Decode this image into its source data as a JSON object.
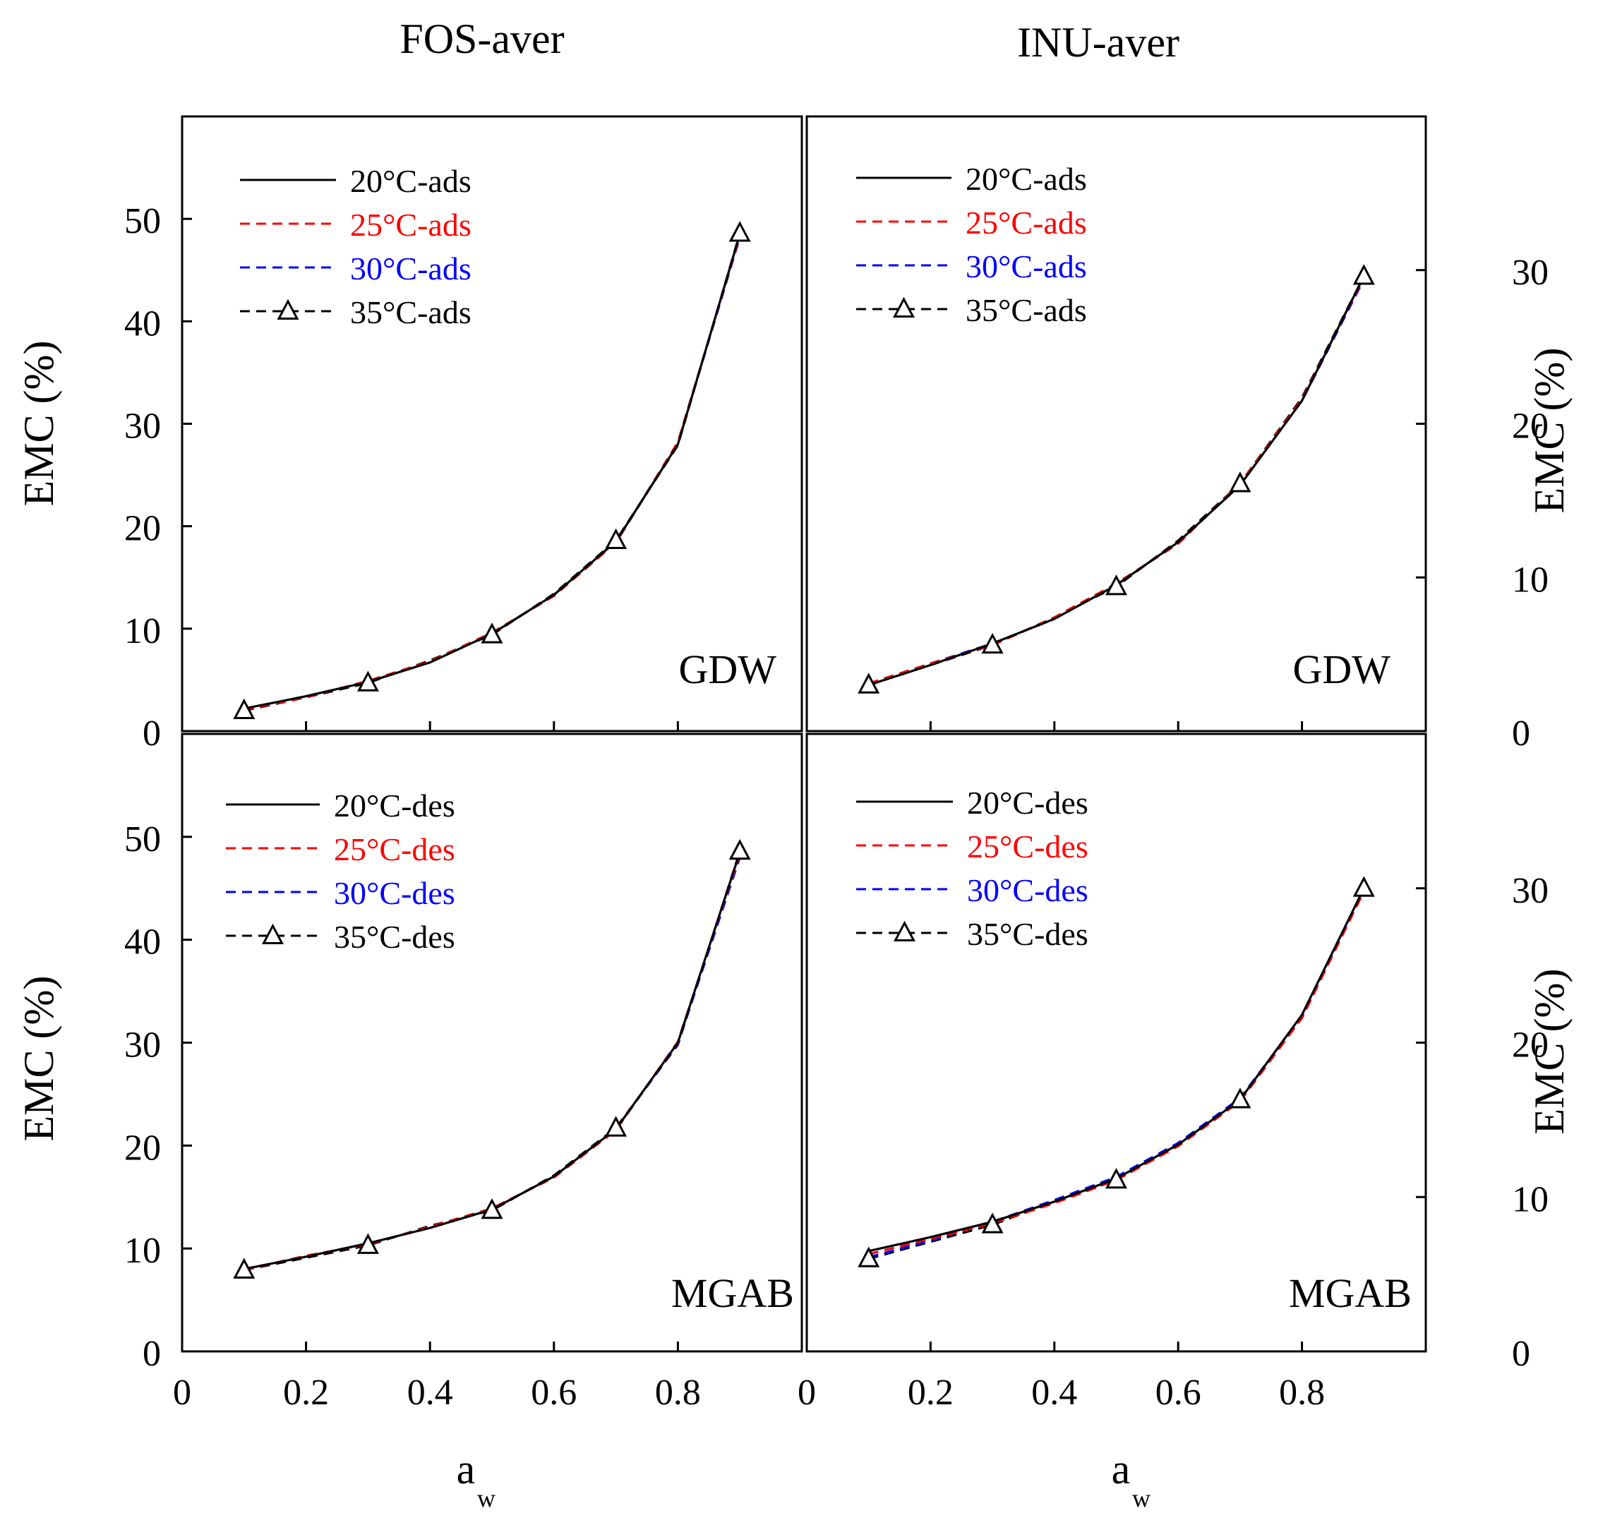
{
  "figure": {
    "col_titles": [
      "FOS-aver",
      "INU-aver"
    ],
    "xlabel_main": "a",
    "xlabel_sub": "w",
    "ylabel": "EMC (%)"
  },
  "colors": {
    "black": "#000000",
    "red": "#ff0000",
    "blue": "#0000ff"
  },
  "chart_data": [
    {
      "id": "fos-ads",
      "type": "line",
      "column_title": "FOS-aver",
      "panel_label": "GDW",
      "xlim": [
        0,
        1
      ],
      "ylim": [
        0,
        60
      ],
      "yticks": [
        0,
        10,
        20,
        30,
        40,
        50
      ],
      "xticks": [
        0,
        0.2,
        0.4,
        0.6,
        0.8
      ],
      "xtick_labels": [
        "0",
        "0.2",
        "0.4",
        "0.6",
        "0.8"
      ],
      "ylabel": "EMC (%)",
      "y_axis_side": "left",
      "legend_position": "top-left",
      "series": [
        {
          "name": "20°C-ads",
          "color": "#000000",
          "dash": "solid",
          "marker": "none",
          "x": [
            0.1,
            0.2,
            0.3,
            0.4,
            0.5,
            0.6,
            0.7,
            0.8,
            0.9
          ],
          "y": [
            2.2,
            3.4,
            4.8,
            6.7,
            9.5,
            13.3,
            18.5,
            28.0,
            48.5
          ]
        },
        {
          "name": "25°C-ads",
          "color": "#ff0000",
          "dash": "dashed",
          "marker": "none",
          "x": [
            0.1,
            0.2,
            0.3,
            0.4,
            0.5,
            0.6,
            0.7,
            0.8,
            0.9
          ],
          "y": [
            2.1,
            3.3,
            4.9,
            6.8,
            9.6,
            13.2,
            18.4,
            28.2,
            48.3
          ]
        },
        {
          "name": "30°C-ads",
          "color": "#0000ff",
          "dash": "dashed",
          "marker": "none",
          "x": [
            0.1,
            0.2,
            0.3,
            0.4,
            0.5,
            0.6,
            0.7,
            0.8,
            0.9
          ],
          "y": [
            2.1,
            3.4,
            4.8,
            6.8,
            9.5,
            13.3,
            18.4,
            28.1,
            48.2
          ]
        },
        {
          "name": "35°C-ads",
          "color": "#000000",
          "dash": "dashed",
          "marker": "triangle",
          "x": [
            0.1,
            0.2,
            0.3,
            0.4,
            0.5,
            0.6,
            0.7,
            0.8,
            0.9
          ],
          "y": [
            2.0,
            3.3,
            4.7,
            6.9,
            9.4,
            13.4,
            18.6,
            27.9,
            48.6
          ]
        }
      ]
    },
    {
      "id": "inu-ads",
      "type": "line",
      "column_title": "INU-aver",
      "panel_label": "GDW",
      "xlim": [
        0,
        1
      ],
      "ylim": [
        0,
        40
      ],
      "yticks": [
        0,
        10,
        20,
        30
      ],
      "xticks": [
        0,
        0.2,
        0.4,
        0.6,
        0.8
      ],
      "xtick_labels": [
        "0",
        "0.2",
        "0.4",
        "0.6",
        "0.8"
      ],
      "ylabel": "EMC (%)",
      "y_axis_side": "right",
      "legend_position": "top-left",
      "series": [
        {
          "name": "20°C-ads",
          "color": "#000000",
          "dash": "solid",
          "marker": "none",
          "x": [
            0.1,
            0.2,
            0.3,
            0.4,
            0.5,
            0.6,
            0.7,
            0.8,
            0.9
          ],
          "y": [
            3.0,
            4.3,
            5.7,
            7.3,
            9.5,
            12.3,
            16.0,
            21.5,
            29.6
          ]
        },
        {
          "name": "25°C-ads",
          "color": "#ff0000",
          "dash": "dashed",
          "marker": "none",
          "x": [
            0.1,
            0.2,
            0.3,
            0.4,
            0.5,
            0.6,
            0.7,
            0.8,
            0.9
          ],
          "y": [
            3.1,
            4.4,
            5.6,
            7.4,
            9.6,
            12.2,
            16.1,
            21.6,
            29.5
          ]
        },
        {
          "name": "30°C-ads",
          "color": "#0000ff",
          "dash": "dashed",
          "marker": "none",
          "x": [
            0.1,
            0.2,
            0.3,
            0.4,
            0.5,
            0.6,
            0.7,
            0.8,
            0.9
          ],
          "y": [
            3.0,
            4.4,
            5.7,
            7.3,
            9.5,
            12.3,
            16.0,
            21.5,
            29.4
          ]
        },
        {
          "name": "35°C-ads",
          "color": "#000000",
          "dash": "dashed",
          "marker": "triangle",
          "x": [
            0.1,
            0.2,
            0.3,
            0.4,
            0.5,
            0.6,
            0.7,
            0.8,
            0.9
          ],
          "y": [
            3.0,
            4.3,
            5.6,
            7.4,
            9.4,
            12.4,
            16.1,
            21.7,
            29.6
          ]
        }
      ]
    },
    {
      "id": "fos-des",
      "type": "line",
      "column_title": "FOS-aver",
      "panel_label": "MGAB",
      "xlim": [
        0,
        1
      ],
      "ylim": [
        0,
        60
      ],
      "yticks": [
        0,
        10,
        20,
        30,
        40,
        50
      ],
      "xticks": [
        0,
        0.2,
        0.4,
        0.6,
        0.8
      ],
      "xtick_labels": [
        "0",
        "0.2",
        "0.4",
        "0.6",
        "0.8"
      ],
      "ylabel": "EMC (%)",
      "y_axis_side": "left",
      "legend_position": "top-left",
      "series": [
        {
          "name": "20°C-des",
          "color": "#000000",
          "dash": "solid",
          "marker": "none",
          "x": [
            0.1,
            0.2,
            0.3,
            0.4,
            0.5,
            0.6,
            0.7,
            0.8,
            0.9
          ],
          "y": [
            8.0,
            9.2,
            10.5,
            12.0,
            13.8,
            17.0,
            21.6,
            30.0,
            48.5
          ]
        },
        {
          "name": "25°C-des",
          "color": "#ff0000",
          "dash": "dashed",
          "marker": "none",
          "x": [
            0.1,
            0.2,
            0.3,
            0.4,
            0.5,
            0.6,
            0.7,
            0.8,
            0.9
          ],
          "y": [
            7.9,
            9.3,
            10.4,
            12.1,
            13.9,
            16.9,
            21.5,
            30.1,
            48.3
          ]
        },
        {
          "name": "30°C-des",
          "color": "#0000ff",
          "dash": "dashed",
          "marker": "none",
          "x": [
            0.1,
            0.2,
            0.3,
            0.4,
            0.5,
            0.6,
            0.7,
            0.8,
            0.9
          ],
          "y": [
            8.0,
            9.2,
            10.5,
            12.0,
            13.8,
            17.0,
            21.6,
            29.9,
            48.0
          ]
        },
        {
          "name": "35°C-des",
          "color": "#000000",
          "dash": "dashed",
          "marker": "triangle",
          "x": [
            0.1,
            0.2,
            0.3,
            0.4,
            0.5,
            0.6,
            0.7,
            0.8,
            0.9
          ],
          "y": [
            7.9,
            9.1,
            10.3,
            12.2,
            13.7,
            17.1,
            21.7,
            29.8,
            48.6
          ]
        }
      ]
    },
    {
      "id": "inu-des",
      "type": "line",
      "column_title": "INU-aver",
      "panel_label": "MGAB",
      "xlim": [
        0,
        1
      ],
      "ylim": [
        0,
        40
      ],
      "yticks": [
        0,
        10,
        20,
        30
      ],
      "xticks": [
        0,
        0.2,
        0.4,
        0.6,
        0.8
      ],
      "xtick_labels": [
        "0",
        "0.2",
        "0.4",
        "0.6",
        "0.8"
      ],
      "ylabel": "EMC (%)",
      "y_axis_side": "right",
      "legend_position": "top-left",
      "series": [
        {
          "name": "20°C-des",
          "color": "#000000",
          "dash": "solid",
          "marker": "none",
          "x": [
            0.1,
            0.2,
            0.3,
            0.4,
            0.5,
            0.6,
            0.7,
            0.8,
            0.9
          ],
          "y": [
            6.5,
            7.4,
            8.4,
            9.7,
            11.2,
            13.4,
            16.3,
            21.8,
            30.0
          ]
        },
        {
          "name": "25°C-des",
          "color": "#ff0000",
          "dash": "dashed",
          "marker": "none",
          "x": [
            0.1,
            0.2,
            0.3,
            0.4,
            0.5,
            0.6,
            0.7,
            0.8,
            0.9
          ],
          "y": [
            6.3,
            7.3,
            8.3,
            9.6,
            11.1,
            13.3,
            16.2,
            21.6,
            29.8
          ]
        },
        {
          "name": "30°C-des",
          "color": "#0000ff",
          "dash": "dashed",
          "marker": "none",
          "x": [
            0.1,
            0.2,
            0.3,
            0.4,
            0.5,
            0.6,
            0.7,
            0.8,
            0.9
          ],
          "y": [
            6.1,
            7.2,
            8.4,
            9.8,
            11.3,
            13.5,
            16.4,
            21.7,
            29.9
          ]
        },
        {
          "name": "35°C-des",
          "color": "#000000",
          "dash": "dashed",
          "marker": "triangle",
          "x": [
            0.1,
            0.2,
            0.3,
            0.4,
            0.5,
            0.6,
            0.7,
            0.8,
            0.9
          ],
          "y": [
            6.0,
            7.1,
            8.2,
            9.7,
            11.1,
            13.4,
            16.3,
            21.7,
            30.0
          ]
        }
      ]
    }
  ]
}
